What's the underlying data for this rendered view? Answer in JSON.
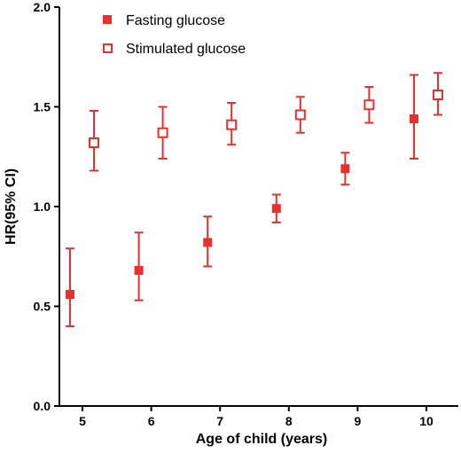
{
  "chart_data": {
    "type": "scatter",
    "title": "",
    "xlabel": "Age of child (years)",
    "ylabel": "HR(95% CI)",
    "categories": [
      "5",
      "6",
      "7",
      "8",
      "9",
      "10"
    ],
    "ylim": [
      0.0,
      2.0
    ],
    "yticks": [
      "0.0",
      "0.5",
      "1.0",
      "1.5",
      "2.0"
    ],
    "grid": false,
    "legend_position": "top-left",
    "color": "#e8312f",
    "series": [
      {
        "name": "Fasting glucose",
        "marker": "filled-square",
        "values": [
          0.56,
          0.68,
          0.82,
          0.99,
          1.19,
          1.44
        ],
        "lower": [
          0.4,
          0.53,
          0.7,
          0.92,
          1.11,
          1.24
        ],
        "upper": [
          0.79,
          0.87,
          0.95,
          1.06,
          1.27,
          1.66
        ]
      },
      {
        "name": "Stimulated glucose",
        "marker": "open-square",
        "values": [
          1.32,
          1.37,
          1.41,
          1.46,
          1.51,
          1.56
        ],
        "lower": [
          1.18,
          1.24,
          1.31,
          1.37,
          1.42,
          1.46
        ],
        "upper": [
          1.48,
          1.5,
          1.52,
          1.55,
          1.6,
          1.67
        ]
      }
    ]
  }
}
